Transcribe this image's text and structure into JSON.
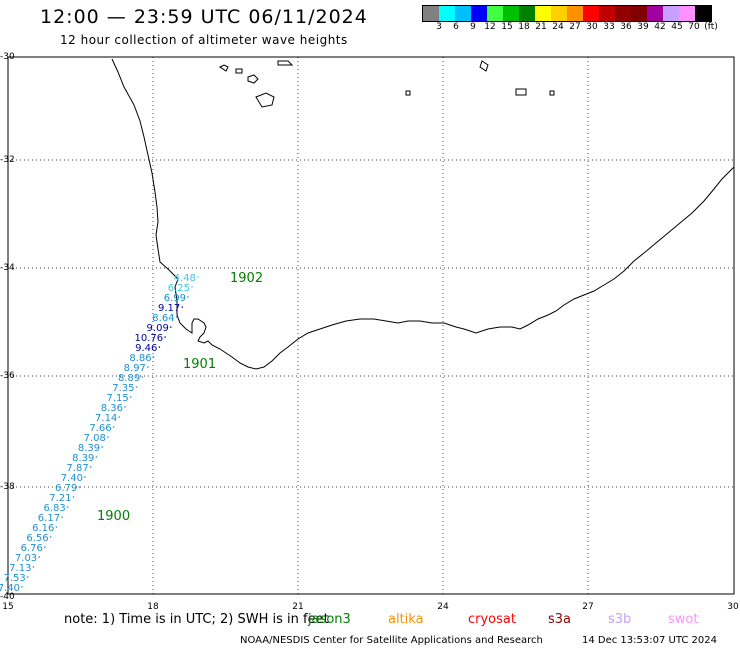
{
  "header": {
    "title": "12:00 — 23:59 UTC 06/11/2024",
    "subtitle": "12 hour collection of altimeter wave heights"
  },
  "legend": {
    "colors": [
      "#808080",
      "#00ffff",
      "#00bfff",
      "#0000ff",
      "#40ff40",
      "#00c000",
      "#008000",
      "#ffff00",
      "#ffd000",
      "#ff9000",
      "#ff0000",
      "#c00000",
      "#900000",
      "#800000",
      "#a000a0",
      "#c8a0ff",
      "#ff90ff",
      "#000000"
    ],
    "ticks": [
      "3",
      "6",
      "9",
      "12",
      "15",
      "18",
      "21",
      "24",
      "27",
      "30",
      "33",
      "36",
      "39",
      "42",
      "45",
      "70",
      "(ft)"
    ]
  },
  "axes": {
    "lat_labels": [
      "-30",
      "-32",
      "-34",
      "-36",
      "-38",
      "-40"
    ],
    "lon_labels": [
      "15",
      "18",
      "21",
      "24",
      "27",
      "30"
    ]
  },
  "track": {
    "time_labels": [
      "1902",
      "1901",
      "1900"
    ],
    "wave_heights": [
      {
        "value": "4.48",
        "color": "#40c8e8"
      },
      {
        "value": "6.25",
        "color": "#40c8e8"
      },
      {
        "value": "6.99",
        "color": "#1e90d0"
      },
      {
        "value": "9.17",
        "color": "#0000a0"
      },
      {
        "value": "8.64",
        "color": "#1e90d0"
      },
      {
        "value": "9.09",
        "color": "#0000a0"
      },
      {
        "value": "10.76",
        "color": "#0000a0"
      },
      {
        "value": "9.46",
        "color": "#0000a0"
      },
      {
        "value": "8.86",
        "color": "#1e90d0"
      },
      {
        "value": "8.97",
        "color": "#1e90d0"
      },
      {
        "value": "8.89",
        "color": "#1e90d0"
      },
      {
        "value": "7.35",
        "color": "#1e90d0"
      },
      {
        "value": "7.15",
        "color": "#1e90d0"
      },
      {
        "value": "8.36",
        "color": "#1e90d0"
      },
      {
        "value": "7.14",
        "color": "#1e90d0"
      },
      {
        "value": "7.66",
        "color": "#1e90d0"
      },
      {
        "value": "7.08",
        "color": "#1e90d0"
      },
      {
        "value": "8.39",
        "color": "#1e90d0"
      },
      {
        "value": "8.39",
        "color": "#1e90d0"
      },
      {
        "value": "7.87",
        "color": "#1e90d0"
      },
      {
        "value": "7.40",
        "color": "#1e90d0"
      },
      {
        "value": "6.79",
        "color": "#1e90d0"
      },
      {
        "value": "7.21",
        "color": "#1e90d0"
      },
      {
        "value": "6.83",
        "color": "#1e90d0"
      },
      {
        "value": "6.17",
        "color": "#1e90d0"
      },
      {
        "value": "6.16",
        "color": "#1e90d0"
      },
      {
        "value": "6.56",
        "color": "#1e90d0"
      },
      {
        "value": "6.76",
        "color": "#1e90d0"
      },
      {
        "value": "7.03",
        "color": "#1e90d0"
      },
      {
        "value": "7.13",
        "color": "#1e90d0"
      },
      {
        "value": "7.53",
        "color": "#1e90d0"
      },
      {
        "value": "7.40",
        "color": "#1e90d0"
      }
    ]
  },
  "footer": {
    "note": "note: 1) Time is in UTC; 2) SWH is in feet",
    "satellites": [
      {
        "name": "jason3",
        "color": "#008000"
      },
      {
        "name": "altika",
        "color": "#ff9000"
      },
      {
        "name": "cryosat",
        "color": "#ff0000"
      },
      {
        "name": "s3a",
        "color": "#900000"
      },
      {
        "name": "s3b",
        "color": "#c8a0ff"
      },
      {
        "name": "swot",
        "color": "#ff90ff"
      }
    ],
    "credit": "NOAA/NESDIS Center for Satellite Applications and Research",
    "timestamp": "14 Dec 13:53:07 UTC 2024"
  }
}
